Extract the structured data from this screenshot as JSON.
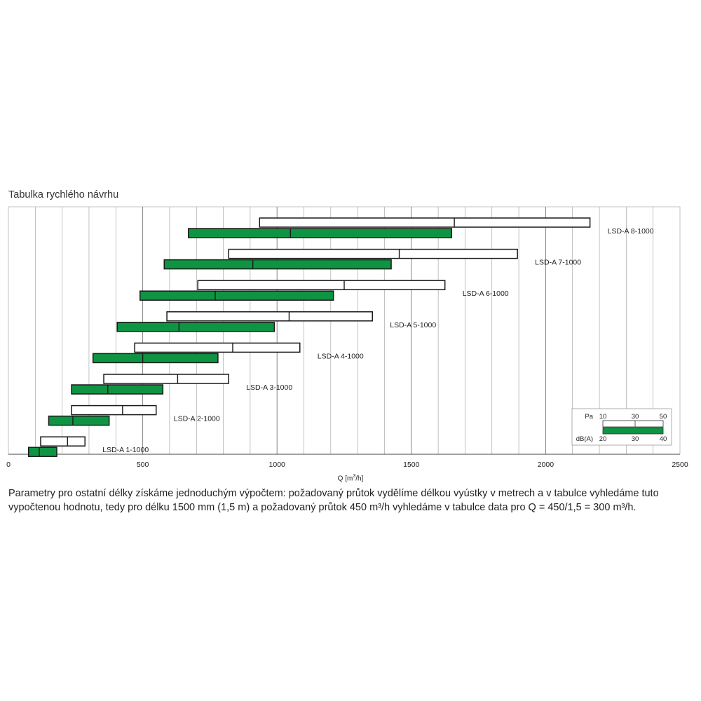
{
  "heading": "Tabulka rychlého návrhu",
  "chart_data": {
    "type": "bar",
    "orientation": "horizontal-range",
    "xlim": [
      0,
      2500
    ],
    "x_ticks": [
      0,
      500,
      1000,
      1500,
      2000,
      2500
    ],
    "xlabel_text": "Q [m",
    "xlabel_sup": "3",
    "xlabel_tail": "/h]",
    "grid": true,
    "legend_position": "bottom-right",
    "models": [
      {
        "label": "LSD-A 1-1000",
        "pa": [
          120,
          220,
          285
        ],
        "db": [
          75,
          115,
          180
        ]
      },
      {
        "label": "LSD-A 2-1000",
        "pa": [
          235,
          425,
          550
        ],
        "db": [
          150,
          240,
          375
        ]
      },
      {
        "label": "LSD-A 3-1000",
        "pa": [
          355,
          630,
          820
        ],
        "db": [
          235,
          370,
          575
        ]
      },
      {
        "label": "LSD-A 4-1000",
        "pa": [
          470,
          835,
          1085
        ],
        "db": [
          315,
          500,
          780
        ]
      },
      {
        "label": "LSD-A 5-1000",
        "pa": [
          590,
          1045,
          1355
        ],
        "db": [
          405,
          635,
          990
        ]
      },
      {
        "label": "LSD-A 6-1000",
        "pa": [
          705,
          1250,
          1625
        ],
        "db": [
          490,
          770,
          1210
        ]
      },
      {
        "label": "LSD-A 7-1000",
        "pa": [
          820,
          1455,
          1895
        ],
        "db": [
          580,
          910,
          1425
        ]
      },
      {
        "label": "LSD-A 8-1000",
        "pa": [
          935,
          1660,
          2165
        ],
        "db": [
          670,
          1050,
          1650
        ]
      }
    ],
    "legend": {
      "pa_label": "Pa",
      "pa_ticks": [
        "10",
        "30",
        "50"
      ],
      "db_label": "dB(A)",
      "db_ticks": [
        "20",
        "30",
        "40"
      ]
    },
    "colors": {
      "green": "#0f9443",
      "white_fill": "#ffffff",
      "stroke": "#1a1a1a",
      "grid": "#9a9a9a"
    }
  },
  "note": {
    "line1": "Parametry pro  ostatní délky získáme jednoduchým výpočtem: požadovaný průtok vydělíme délkou vyústky v metrech a v tabulce vyhledáme tuto",
    "line2": "vypočtenou hodnotu, tedy pro délku 1500 mm (1,5 m) a požadovaný průtok 450 m³/h vyhledáme v tabulce data pro Q = 450/1,5 = 300 m³/h."
  }
}
